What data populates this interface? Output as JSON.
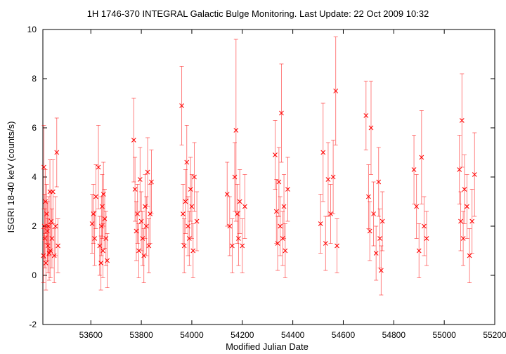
{
  "chart_data": {
    "type": "scatter",
    "title": "1H 1746-370   INTEGRAL Galactic Bulge Monitoring.  Last Update: 22 Oct 2009 10:32",
    "xlabel": "Modified Julian Date",
    "ylabel": "ISGRI 18-40 keV (counts/s)",
    "xlim": [
      53410,
      55200
    ],
    "ylim": [
      -2,
      10
    ],
    "xticks": [
      53600,
      53800,
      54000,
      54200,
      54400,
      54600,
      54800,
      55000,
      55200
    ],
    "yticks": [
      -2,
      0,
      2,
      4,
      6,
      8,
      10
    ],
    "grid": false,
    "legend": "none",
    "series_color": "#ff0000",
    "series": [
      {
        "x": [
          53412,
          53414,
          53416,
          53418,
          53420,
          53422,
          53425,
          53428,
          53430,
          53432,
          53435,
          53438,
          53440,
          53443,
          53446,
          53450,
          53455,
          53460,
          53465,
          53470,
          53605,
          53610,
          53615,
          53620,
          53630,
          53635,
          53640,
          53642,
          53645,
          53648,
          53650,
          53655,
          53660,
          53665,
          53770,
          53775,
          53780,
          53785,
          53790,
          53795,
          53800,
          53805,
          53810,
          53815,
          53820,
          53825,
          53830,
          53835,
          53840,
          53960,
          53965,
          53970,
          53975,
          53980,
          53985,
          53990,
          53995,
          54000,
          54005,
          54010,
          54020,
          54140,
          54150,
          54160,
          54170,
          54175,
          54180,
          54185,
          54190,
          54200,
          54210,
          54330,
          54335,
          54340,
          54345,
          54350,
          54355,
          54360,
          54365,
          54370,
          54380,
          54510,
          54520,
          54530,
          54540,
          54550,
          54560,
          54570,
          54575,
          54690,
          54700,
          54705,
          54710,
          54720,
          54730,
          54740,
          54745,
          54750,
          54755,
          54880,
          54890,
          54900,
          54910,
          54920,
          54930,
          55060,
          55065,
          55070,
          55075,
          55080,
          55090,
          55100,
          55110,
          55120
        ],
        "y": [
          0.8,
          4.4,
          2.0,
          1.5,
          3.0,
          0.5,
          2.5,
          1.8,
          1.2,
          2.0,
          0.9,
          3.4,
          1.0,
          2.2,
          1.5,
          3.4,
          0.8,
          2.0,
          5.0,
          1.2,
          2.1,
          2.5,
          1.5,
          3.2,
          4.4,
          1.2,
          0.5,
          2.0,
          2.8,
          1.0,
          3.3,
          2.3,
          1.5,
          0.6,
          5.5,
          3.5,
          1.8,
          2.5,
          1.0,
          3.9,
          2.2,
          1.5,
          0.8,
          2.8,
          2.0,
          4.2,
          1.2,
          2.5,
          3.8,
          6.9,
          2.5,
          1.2,
          3.0,
          4.6,
          2.0,
          1.5,
          3.5,
          2.8,
          1.0,
          4.0,
          2.2,
          3.3,
          2.0,
          1.2,
          4.0,
          5.9,
          2.5,
          1.5,
          3.0,
          1.2,
          2.8,
          4.9,
          2.6,
          1.3,
          3.8,
          2.0,
          6.6,
          1.5,
          2.8,
          1.0,
          3.5,
          2.1,
          5.0,
          1.3,
          3.9,
          2.5,
          4.0,
          7.5,
          1.2,
          6.5,
          3.2,
          1.8,
          6.0,
          2.5,
          0.9,
          3.8,
          1.5,
          0.2,
          2.2,
          4.3,
          2.8,
          1.0,
          4.8,
          2.0,
          1.5,
          4.3,
          2.2,
          6.3,
          1.5,
          3.5,
          2.8,
          0.8,
          2.2,
          4.1
        ],
        "yerr": [
          1.1,
          1.7,
          1.3,
          1.2,
          1.3,
          1.1,
          1.2,
          1.2,
          1.1,
          1.2,
          1.1,
          1.3,
          1.1,
          1.2,
          1.2,
          1.3,
          1.1,
          1.2,
          1.4,
          1.1,
          1.2,
          1.2,
          1.1,
          1.3,
          1.7,
          1.2,
          1.1,
          1.2,
          1.3,
          1.1,
          1.3,
          1.2,
          1.1,
          1.1,
          1.7,
          1.3,
          1.2,
          1.2,
          1.1,
          1.3,
          1.2,
          1.1,
          1.1,
          1.3,
          1.2,
          1.4,
          1.1,
          1.2,
          1.3,
          1.6,
          1.2,
          1.1,
          1.3,
          1.5,
          1.2,
          1.1,
          1.3,
          1.3,
          1.1,
          1.4,
          1.2,
          1.3,
          1.2,
          1.1,
          1.4,
          3.7,
          1.2,
          1.1,
          1.3,
          1.1,
          1.3,
          1.4,
          1.3,
          1.1,
          1.4,
          1.2,
          2.0,
          1.1,
          1.3,
          1.1,
          1.3,
          1.2,
          2.0,
          1.1,
          1.5,
          1.2,
          1.5,
          2.2,
          1.1,
          1.4,
          1.3,
          1.2,
          1.9,
          1.3,
          1.1,
          1.4,
          1.2,
          1.0,
          1.2,
          1.4,
          1.3,
          1.1,
          1.9,
          1.2,
          1.1,
          1.4,
          1.2,
          1.9,
          1.1,
          1.4,
          1.3,
          1.1,
          1.3,
          1.7
        ]
      }
    ]
  }
}
